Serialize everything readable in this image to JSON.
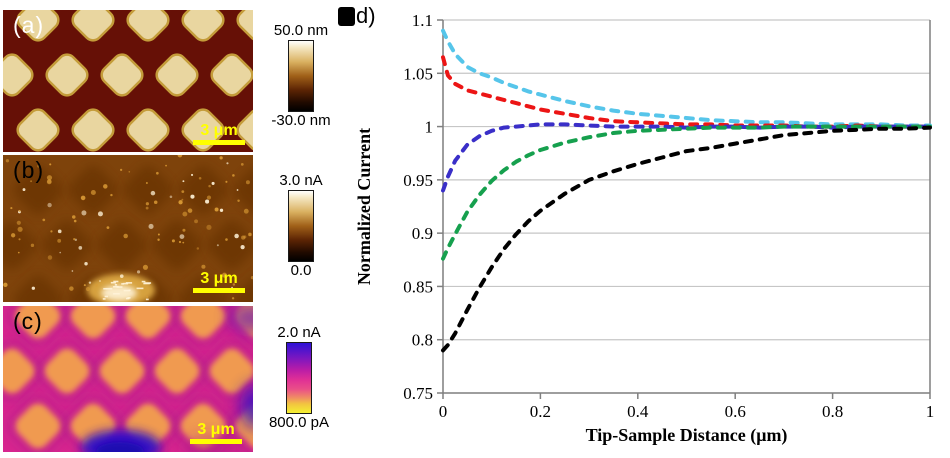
{
  "panels": {
    "a": {
      "label": "(a)",
      "description": "afm-topography-image",
      "scalebar_text": "3 μm",
      "colorbar": {
        "top_label": "50.0 nm",
        "bottom_label": "-30.0 nm",
        "gradient": [
          "#FFFFFF 0%",
          "#F4E6C0 10%",
          "#D9B060 30%",
          "#A06018 50%",
          "#5C2404 70%",
          "#200A00 88%",
          "#000000 100%"
        ]
      },
      "image_colors": {
        "background": "#661006",
        "features": "#E9D6A0",
        "feature_rim": "#C49C3A",
        "scalebar": "#FFFF00",
        "label_color": "#FFFFFF"
      }
    },
    "b": {
      "label": "(b)",
      "description": "current-map-image",
      "scalebar_text": "3 μm",
      "colorbar": {
        "top_label": "3.0 nA",
        "bottom_label": "0.0",
        "gradient": [
          "#FFFFFF 0%",
          "#F4E6C0 10%",
          "#D9B060 30%",
          "#A06018 50%",
          "#5C2404 70%",
          "#200A00 88%",
          "#000000 100%"
        ]
      },
      "image_colors": {
        "background": "#7E430B",
        "features": "#663305",
        "speckle": "#FFF3D8",
        "speckle_gold": "#D99A35",
        "bright_patch": "#E8B44A",
        "scalebar": "#FFFF00",
        "label_color": "#000000"
      }
    },
    "c": {
      "label": "(c)",
      "description": "current-map-image",
      "scalebar_text": "3 μm",
      "colorbar": {
        "top_label": "2.0 nA",
        "bottom_label": "800.0 pA",
        "gradient": [
          "#2E12D6 0%",
          "#7516C2 20%",
          "#B81CA8 38%",
          "#DF2F96 52%",
          "#EA4F88 66%",
          "#F08C64 78%",
          "#F2C440 87%",
          "#F4F032 100%"
        ]
      },
      "image_colors": {
        "background": "#D7268F",
        "features": "#F2A14D",
        "shadow": "#A81C86",
        "blue_blob": "#2D10C8",
        "purple_blob": "#6A14B8",
        "scalebar": "#FFFF00",
        "label_color": "#000000"
      }
    },
    "d": {
      "label": "d)",
      "marker": "black-square"
    }
  },
  "chart_data": {
    "type": "line",
    "title": "",
    "xlabel": "Tip-Sample Distance (μm)",
    "ylabel": "Normalized Current",
    "xlim": [
      0,
      1
    ],
    "ylim": [
      0.75,
      1.1
    ],
    "xticks": [
      0,
      0.2,
      0.4,
      0.6,
      0.8,
      1
    ],
    "xtick_labels": [
      "0",
      "0.2",
      "0.4",
      "0.6",
      "0.8",
      "1"
    ],
    "yticks": [
      0.75,
      0.8,
      0.85,
      0.9,
      0.95,
      1,
      1.05,
      1.1
    ],
    "ytick_labels": [
      "0.75",
      "0.8",
      "0.85",
      "0.9",
      "0.95",
      "1",
      "1.05",
      "1.1"
    ],
    "grid": "horizontal",
    "legend": "none",
    "line_style": "dashed",
    "gridline_color": "#C6C6C6",
    "axis_color": "#7F7F7F",
    "x": [
      0,
      0.01,
      0.025,
      0.05,
      0.075,
      0.1,
      0.125,
      0.15,
      0.175,
      0.2,
      0.25,
      0.3,
      0.35,
      0.4,
      0.45,
      0.5,
      0.55,
      0.6,
      0.65,
      0.7,
      0.75,
      0.8,
      0.85,
      0.9,
      0.95,
      1.0
    ],
    "series": [
      {
        "name": "light-blue",
        "color": "#56C5EA",
        "values": [
          1.09,
          1.08,
          1.068,
          1.056,
          1.05,
          1.046,
          1.041,
          1.037,
          1.033,
          1.03,
          1.024,
          1.019,
          1.015,
          1.012,
          1.01,
          1.008,
          1.006,
          1.005,
          1.004,
          1.004,
          1.003,
          1.002,
          1.002,
          1.002,
          1.001,
          1.001
        ]
      },
      {
        "name": "red",
        "color": "#EC1515",
        "values": [
          1.065,
          1.048,
          1.04,
          1.034,
          1.031,
          1.028,
          1.025,
          1.022,
          1.019,
          1.016,
          1.012,
          1.008,
          1.005,
          1.004,
          1.003,
          1.002,
          1.002,
          1.001,
          1.001,
          1.001,
          1.0,
          1.0,
          1.001,
          1.0,
          1.0,
          1.0
        ]
      },
      {
        "name": "blue",
        "color": "#3A2FC8",
        "values": [
          0.94,
          0.953,
          0.968,
          0.983,
          0.991,
          0.996,
          0.999,
          1.0,
          1.001,
          1.002,
          1.002,
          1.001,
          1.0,
          1.0,
          1.0,
          0.999,
          1.0,
          1.0,
          0.999,
          1.0,
          1.0,
          0.999,
          1.0,
          1.0,
          1.0,
          1.0
        ]
      },
      {
        "name": "green",
        "color": "#16A04E",
        "values": [
          0.876,
          0.886,
          0.899,
          0.92,
          0.936,
          0.949,
          0.959,
          0.967,
          0.973,
          0.978,
          0.985,
          0.99,
          0.994,
          0.996,
          0.997,
          0.998,
          0.999,
          0.999,
          0.999,
          1.0,
          1.0,
          1.0,
          1.0,
          1.0,
          1.0,
          1.0
        ]
      },
      {
        "name": "black",
        "color": "#000000",
        "values": [
          0.79,
          0.795,
          0.806,
          0.828,
          0.849,
          0.868,
          0.885,
          0.899,
          0.911,
          0.921,
          0.937,
          0.95,
          0.958,
          0.965,
          0.971,
          0.977,
          0.98,
          0.984,
          0.988,
          0.992,
          0.994,
          0.996,
          0.997,
          0.998,
          0.998,
          0.999
        ]
      }
    ]
  }
}
